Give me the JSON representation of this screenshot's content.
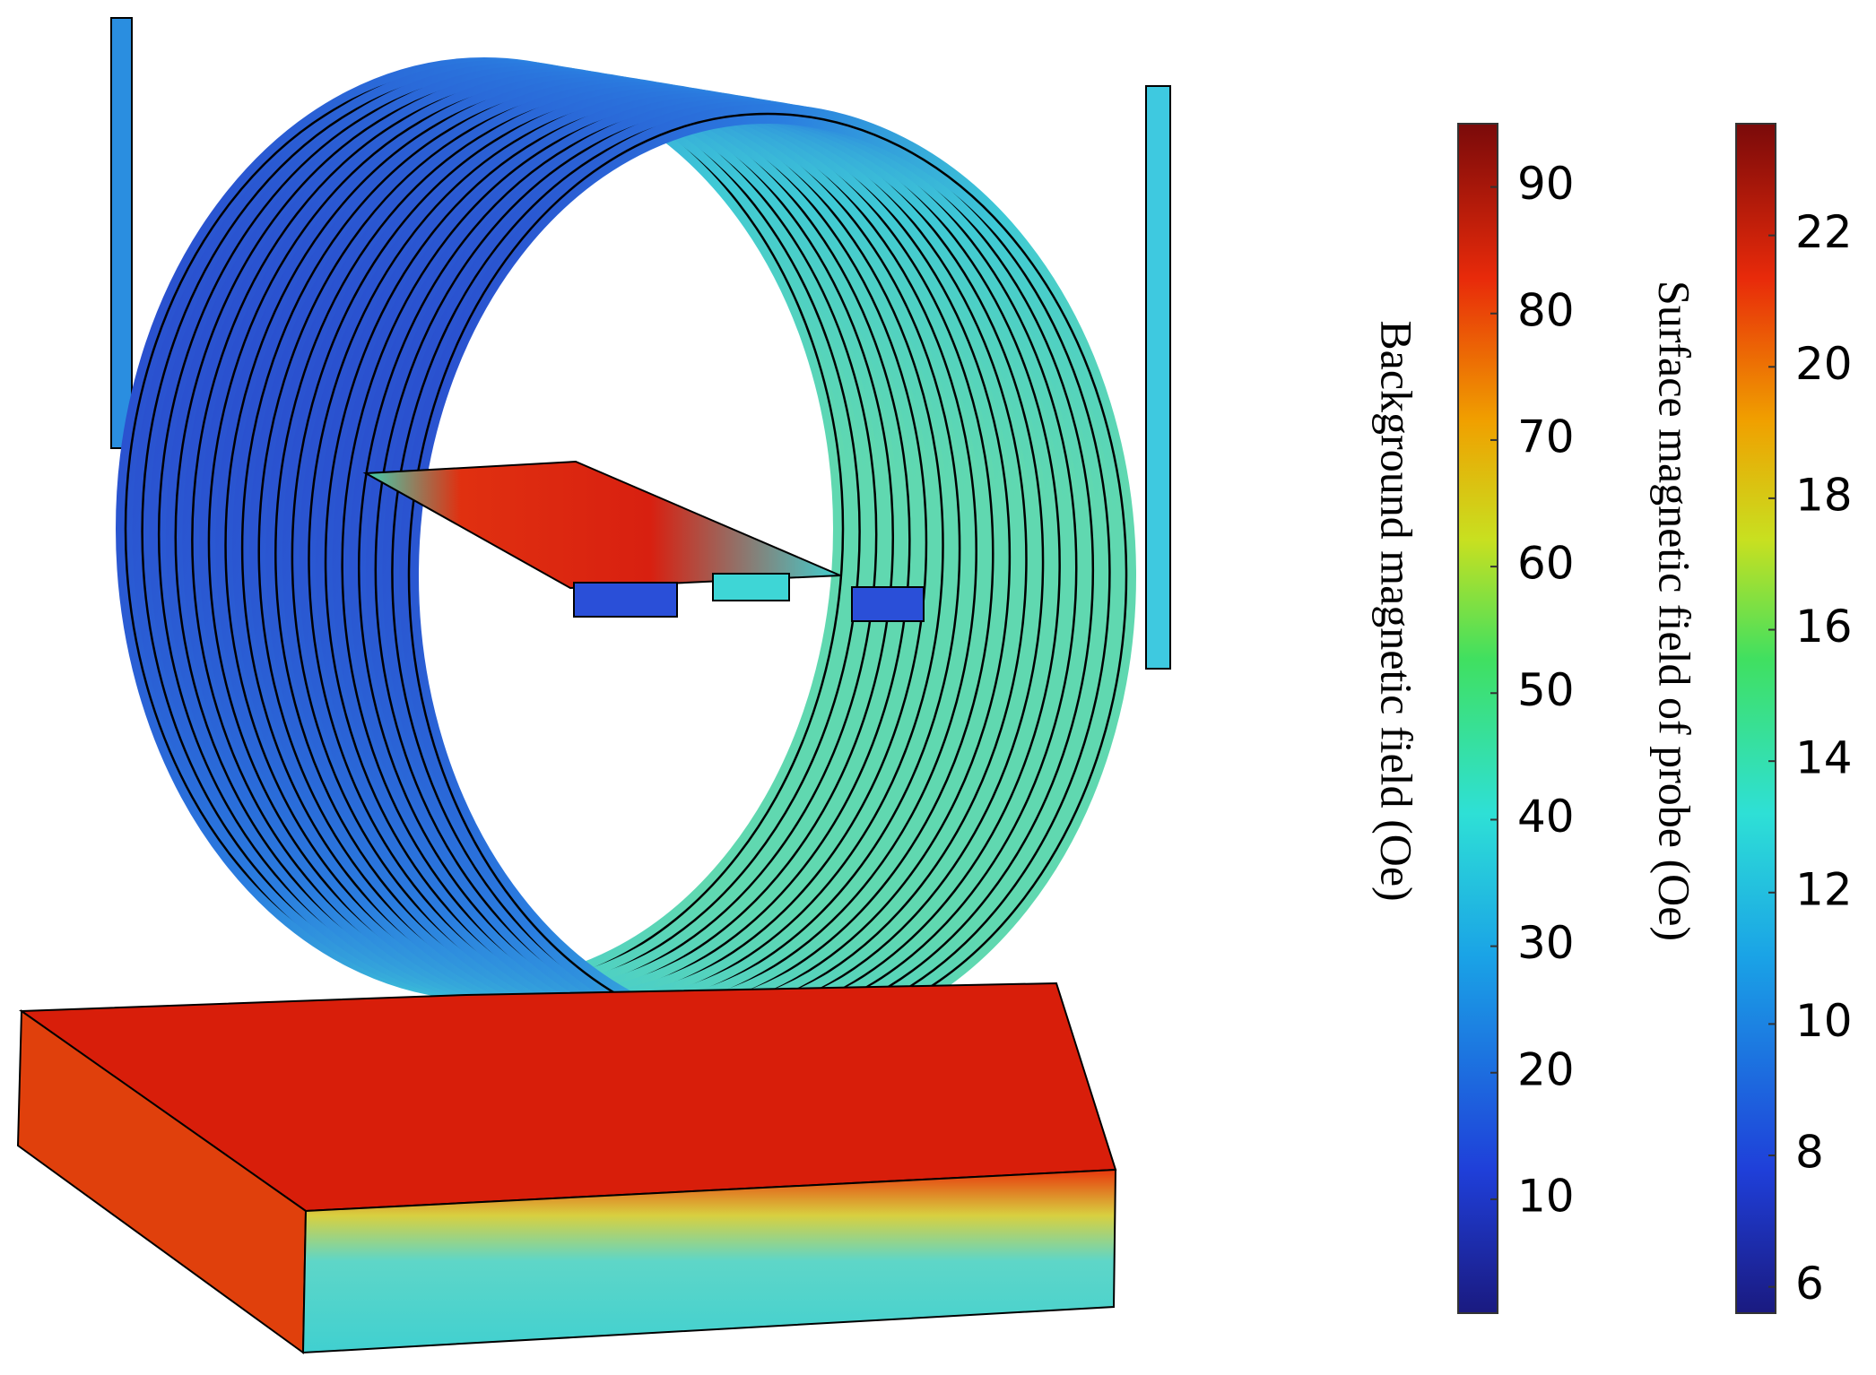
{
  "colorbars": [
    {
      "label": "Background magnetic field (Oe)",
      "lim": [
        1,
        95
      ],
      "ticks": [
        10,
        20,
        30,
        40,
        50,
        60,
        70,
        80,
        90
      ]
    },
    {
      "label": "Surface magnetic field of probe (Oe)",
      "lim": [
        5.6,
        23.7
      ],
      "ticks": [
        6,
        8,
        10,
        12,
        14,
        16,
        18,
        20,
        22
      ]
    }
  ]
}
